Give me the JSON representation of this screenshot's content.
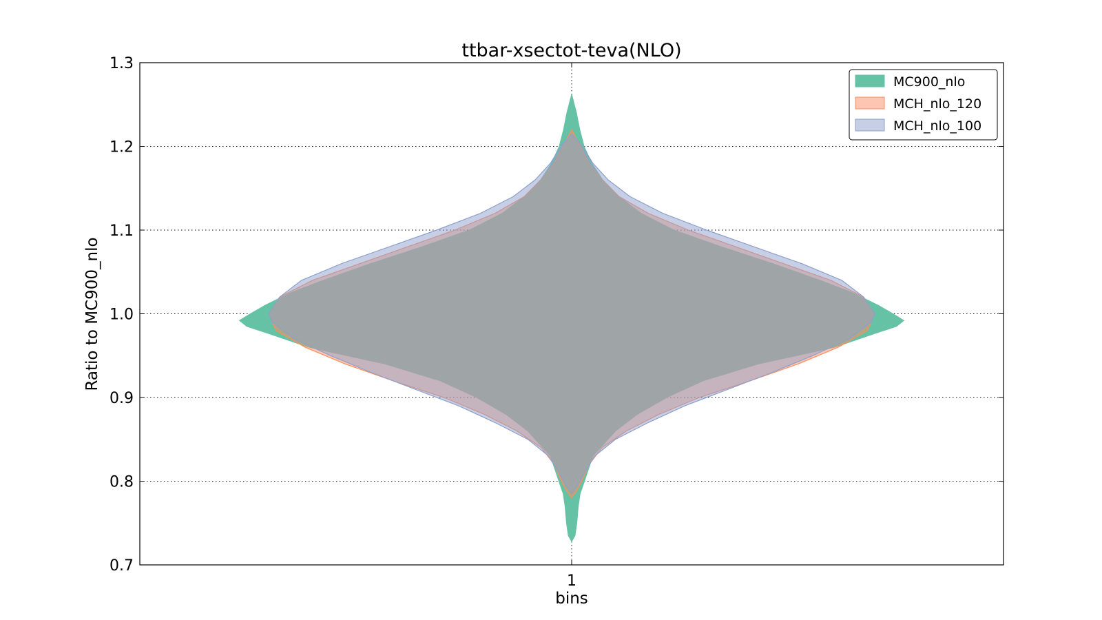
{
  "chart_data": {
    "type": "violin",
    "title": "ttbar-xsectot-teva(NLO)",
    "xlabel": "bins",
    "ylabel": "Ratio to MC900_nlo",
    "categories": [
      "1"
    ],
    "ylim": [
      0.7,
      1.3
    ],
    "yticks": [
      "0.7",
      "0.8",
      "0.9",
      "1.0",
      "1.1",
      "1.2",
      "1.3"
    ],
    "grid": true,
    "legend_position": "top-right",
    "series": [
      {
        "name": "MC900_nlo",
        "color": "#66c2a5",
        "edge": "#66c2a5",
        "profile": [
          [
            0.728,
            0.0
          ],
          [
            0.735,
            0.009
          ],
          [
            0.75,
            0.014
          ],
          [
            0.77,
            0.018
          ],
          [
            0.785,
            0.023
          ],
          [
            0.8,
            0.035
          ],
          [
            0.83,
            0.058
          ],
          [
            0.86,
            0.12
          ],
          [
            0.88,
            0.18
          ],
          [
            0.9,
            0.26
          ],
          [
            0.92,
            0.36
          ],
          [
            0.94,
            0.51
          ],
          [
            0.96,
            0.72
          ],
          [
            0.975,
            0.82
          ],
          [
            0.985,
            0.89
          ],
          [
            0.992,
            0.91
          ],
          [
            1.0,
            0.88
          ],
          [
            1.01,
            0.84
          ],
          [
            1.025,
            0.77
          ],
          [
            1.04,
            0.68
          ],
          [
            1.06,
            0.55
          ],
          [
            1.08,
            0.41
          ],
          [
            1.1,
            0.28
          ],
          [
            1.12,
            0.19
          ],
          [
            1.14,
            0.13
          ],
          [
            1.16,
            0.085
          ],
          [
            1.18,
            0.055
          ],
          [
            1.2,
            0.034
          ],
          [
            1.22,
            0.022
          ],
          [
            1.24,
            0.013
          ],
          [
            1.262,
            0.0
          ]
        ]
      },
      {
        "name": "MCH_nlo_120",
        "color": "#fc8d62",
        "edge": "#fc8d62",
        "profile": [
          [
            0.78,
            0.0
          ],
          [
            0.79,
            0.016
          ],
          [
            0.8,
            0.028
          ],
          [
            0.82,
            0.048
          ],
          [
            0.84,
            0.083
          ],
          [
            0.86,
            0.15
          ],
          [
            0.88,
            0.24
          ],
          [
            0.9,
            0.35
          ],
          [
            0.92,
            0.49
          ],
          [
            0.94,
            0.62
          ],
          [
            0.96,
            0.73
          ],
          [
            0.98,
            0.81
          ],
          [
            1.0,
            0.83
          ],
          [
            1.02,
            0.8
          ],
          [
            1.04,
            0.71
          ],
          [
            1.06,
            0.58
          ],
          [
            1.08,
            0.45
          ],
          [
            1.1,
            0.32
          ],
          [
            1.12,
            0.21
          ],
          [
            1.14,
            0.13
          ],
          [
            1.16,
            0.083
          ],
          [
            1.18,
            0.048
          ],
          [
            1.2,
            0.024
          ],
          [
            1.21,
            0.012
          ],
          [
            1.22,
            0.0
          ]
        ]
      },
      {
        "name": "MCH_nlo_100",
        "color": "#8da0cb",
        "edge": "#8da0cb",
        "profile": [
          [
            0.785,
            0.0
          ],
          [
            0.795,
            0.016
          ],
          [
            0.81,
            0.035
          ],
          [
            0.83,
            0.063
          ],
          [
            0.85,
            0.12
          ],
          [
            0.87,
            0.21
          ],
          [
            0.89,
            0.31
          ],
          [
            0.91,
            0.43
          ],
          [
            0.93,
            0.55
          ],
          [
            0.95,
            0.66
          ],
          [
            0.97,
            0.76
          ],
          [
            0.99,
            0.82
          ],
          [
            1.0,
            0.83
          ],
          [
            1.02,
            0.8
          ],
          [
            1.04,
            0.74
          ],
          [
            1.06,
            0.63
          ],
          [
            1.08,
            0.5
          ],
          [
            1.1,
            0.37
          ],
          [
            1.12,
            0.25
          ],
          [
            1.14,
            0.16
          ],
          [
            1.16,
            0.1
          ],
          [
            1.18,
            0.058
          ],
          [
            1.2,
            0.03
          ],
          [
            1.215,
            0.0
          ]
        ]
      }
    ]
  }
}
